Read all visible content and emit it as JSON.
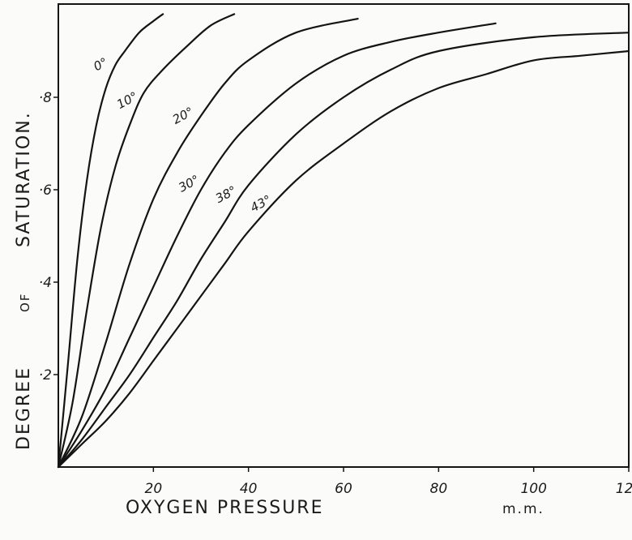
{
  "chart_data": {
    "type": "line",
    "xlabel": "OXYGEN PRESSURE",
    "xunit": "m.m.",
    "ylabel_words": [
      "DEGREE",
      "OF",
      "SATURATION."
    ],
    "xlim": [
      0,
      120
    ],
    "ylim": [
      0,
      0.98
    ],
    "xticks": [
      20,
      40,
      60,
      80,
      100,
      120
    ],
    "xtick_labels": [
      "20",
      "40",
      "60",
      "80",
      "100",
      "120"
    ],
    "yticks": [
      0.2,
      0.4,
      0.6,
      0.8
    ],
    "ytick_labels": [
      "·2",
      "·4",
      "·6",
      "·8"
    ],
    "grid": false,
    "series": [
      {
        "name": "0°",
        "x": [
          0,
          2,
          4,
          6,
          8,
          10,
          12,
          14,
          17,
          20,
          22
        ],
        "y": [
          0,
          0.22,
          0.45,
          0.62,
          0.74,
          0.82,
          0.87,
          0.9,
          0.94,
          0.965,
          0.98
        ]
      },
      {
        "name": "10°",
        "x": [
          0,
          3,
          6,
          9,
          12,
          15,
          18,
          22,
          27,
          32,
          37
        ],
        "y": [
          0,
          0.14,
          0.34,
          0.52,
          0.65,
          0.74,
          0.81,
          0.86,
          0.91,
          0.955,
          0.98
        ]
      },
      {
        "name": "20°",
        "x": [
          0,
          5,
          10,
          15,
          20,
          25,
          30,
          35,
          40,
          50,
          63
        ],
        "y": [
          0,
          0.11,
          0.27,
          0.44,
          0.58,
          0.68,
          0.76,
          0.83,
          0.88,
          0.94,
          0.97
        ]
      },
      {
        "name": "30°",
        "x": [
          0,
          5,
          10,
          15,
          20,
          25,
          30,
          35,
          40,
          50,
          60,
          70,
          80,
          92
        ],
        "y": [
          0,
          0.08,
          0.17,
          0.28,
          0.39,
          0.5,
          0.6,
          0.68,
          0.74,
          0.83,
          0.89,
          0.92,
          0.94,
          0.96
        ]
      },
      {
        "name": "38°",
        "x": [
          0,
          5,
          10,
          15,
          20,
          25,
          30,
          35,
          40,
          50,
          60,
          70,
          80,
          100,
          120
        ],
        "y": [
          0,
          0.06,
          0.13,
          0.2,
          0.28,
          0.36,
          0.45,
          0.53,
          0.61,
          0.72,
          0.8,
          0.86,
          0.9,
          0.93,
          0.94
        ]
      },
      {
        "name": "43°",
        "x": [
          0,
          5,
          10,
          15,
          20,
          25,
          30,
          35,
          40,
          50,
          60,
          70,
          80,
          90,
          100,
          110,
          120
        ],
        "y": [
          0,
          0.05,
          0.1,
          0.16,
          0.23,
          0.3,
          0.37,
          0.44,
          0.51,
          0.62,
          0.7,
          0.77,
          0.82,
          0.85,
          0.88,
          0.89,
          0.9
        ]
      }
    ]
  }
}
